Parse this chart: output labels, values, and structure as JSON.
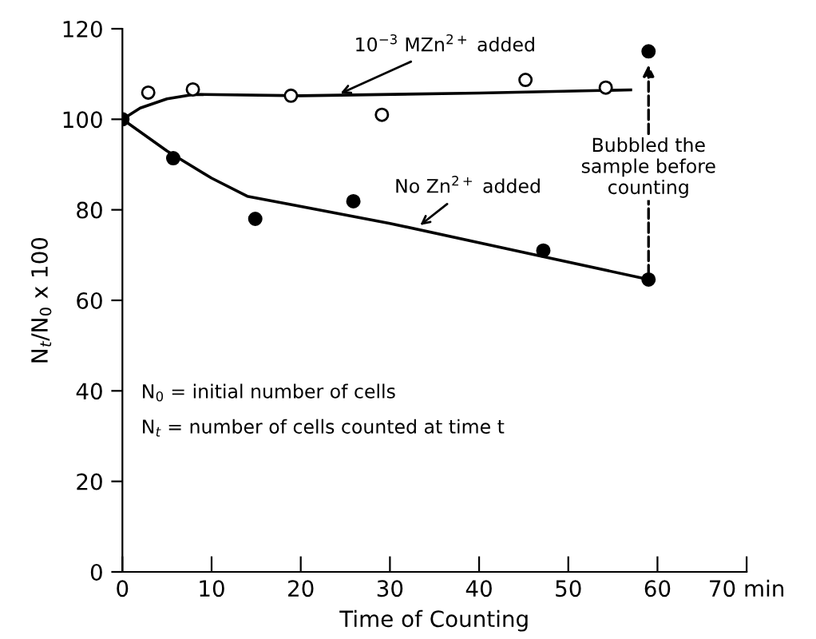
{
  "chart_data": {
    "type": "scatter",
    "xlabel": "Time of Counting",
    "ylabel": "N$_{t}$/N$_{0}$ x 100",
    "xlim": [
      0,
      70
    ],
    "ylim": [
      0,
      120
    ],
    "xticks": [
      0,
      10,
      20,
      30,
      40,
      50,
      60,
      {
        "value": 70,
        "label": "70 min"
      }
    ],
    "yticks": [
      0,
      20,
      40,
      60,
      80,
      100,
      120
    ],
    "grid": false,
    "series": [
      {
        "marker": "circle",
        "color": "#ffffff",
        "x": [
          2.9,
          7.9,
          18.9,
          29.1,
          45.2,
          54.2
        ],
        "values": [
          105.9,
          106.6,
          105.2,
          101,
          108.7,
          107
        ]
      },
      {
        "marker": "circle",
        "color": "#000000",
        "x": [
          0,
          5.7,
          14.9,
          25.9,
          47.2,
          59,
          59
        ],
        "values": [
          100,
          91.4,
          78,
          81.9,
          71,
          64.6,
          115
        ]
      },
      {
        "type": "line",
        "marker": "none",
        "line_style": "solid",
        "color": "#000000",
        "x": [
          0,
          2,
          5,
          8,
          20,
          40,
          57
        ],
        "values": [
          100,
          102.5,
          104.5,
          105.5,
          105.2,
          105.8,
          106.5
        ]
      },
      {
        "type": "line",
        "marker": "none",
        "line_style": "solid",
        "color": "#000000",
        "x": [
          0,
          5,
          10,
          14,
          30,
          45,
          59
        ],
        "values": [
          100,
          93,
          87,
          83,
          77,
          70.6,
          64.6
        ]
      }
    ],
    "annotations": [
      {
        "text": "10$^{−3}$ MZn$^{2+}$ added",
        "x": 24,
        "y": 105.3
      },
      {
        "text": "No Zn$^{2+}$ added",
        "x": 33,
        "y": 76
      },
      "Bubbled the\nsample before\ncounting",
      "N$_{0}$ = initial number of cells",
      "N$_{t}$ = number of cells counted at time t"
    ]
  }
}
